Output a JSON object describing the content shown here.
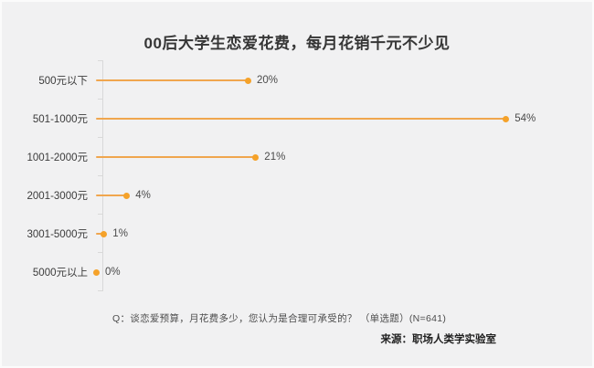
{
  "title": "00后大学生恋爱花费，每月花销千元不少见",
  "chart_data": {
    "type": "bar",
    "orientation": "horizontal-lollipop",
    "title": "00后大学生恋爱花费，每月花销千元不少见",
    "categories": [
      "500元以下",
      "501-1000元",
      "1001-2000元",
      "2001-3000元",
      "3001-5000元",
      "5000元以上"
    ],
    "values": [
      20,
      54,
      21,
      4,
      1,
      0
    ],
    "value_labels": [
      "20%",
      "54%",
      "21%",
      "4%",
      "1%",
      "0%"
    ],
    "unit": "%",
    "xlim": [
      0,
      54
    ],
    "grid": false,
    "legend": "none",
    "accent_color": "#f5a22a",
    "line_color": "#f0a64e",
    "axis_color": "#d9d9d9"
  },
  "footnote": {
    "question": "Q：谈恋爱预算，月花费多少，您认为是合理可承受的？ （单选题）(N=641)",
    "source": "来源：职场人类学实验室"
  }
}
